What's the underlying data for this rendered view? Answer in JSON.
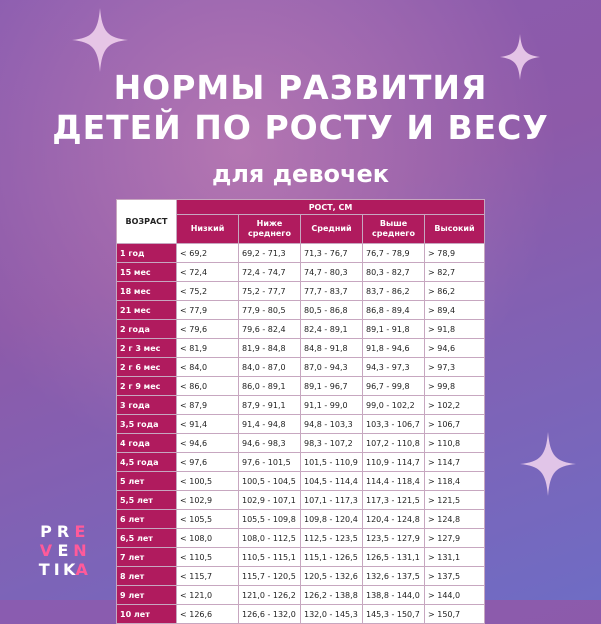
{
  "header": {
    "title_line1": "НОРМЫ РАЗВИТИЯ",
    "title_line2": "ДЕТЕЙ ПО РОСТУ И ВЕСУ",
    "subtitle": "для девочек"
  },
  "table": {
    "age_header": "ВОЗРАСТ",
    "group_header": "РОСТ, СМ",
    "columns": [
      "Низкий",
      "Ниже среднего",
      "Средний",
      "Выше среднего",
      "Высокий"
    ],
    "rows": [
      {
        "age": "1 год",
        "values": [
          "< 69,2",
          "69,2 - 71,3",
          "71,3 - 76,7",
          "76,7 - 78,9",
          "> 78,9"
        ]
      },
      {
        "age": "15 мес",
        "values": [
          "< 72,4",
          "72,4 - 74,7",
          "74,7 - 80,3",
          "80,3 - 82,7",
          "> 82,7"
        ]
      },
      {
        "age": "18 мес",
        "values": [
          "< 75,2",
          "75,2 - 77,7",
          "77,7 - 83,7",
          "83,7 - 86,2",
          "> 86,2"
        ]
      },
      {
        "age": "21 мес",
        "values": [
          "< 77,9",
          "77,9 - 80,5",
          "80,5 - 86,8",
          "86,8 - 89,4",
          "> 89,4"
        ]
      },
      {
        "age": "2 года",
        "values": [
          "< 79,6",
          "79,6 - 82,4",
          "82,4 - 89,1",
          "89,1 - 91,8",
          "> 91,8"
        ]
      },
      {
        "age": "2 г 3 мес",
        "values": [
          "< 81,9",
          "81,9 - 84,8",
          "84,8 - 91,8",
          "91,8 - 94,6",
          "> 94,6"
        ]
      },
      {
        "age": "2 г 6 мес",
        "values": [
          "< 84,0",
          "84,0 - 87,0",
          "87,0 - 94,3",
          "94,3 - 97,3",
          "> 97,3"
        ]
      },
      {
        "age": "2 г 9 мес",
        "values": [
          "< 86,0",
          "86,0 - 89,1",
          "89,1 - 96,7",
          "96,7 - 99,8",
          "> 99,8"
        ]
      },
      {
        "age": "3 года",
        "values": [
          "< 87,9",
          "87,9 - 91,1",
          "91,1 - 99,0",
          "99,0 - 102,2",
          "> 102,2"
        ]
      },
      {
        "age": "3,5 года",
        "values": [
          "< 91,4",
          "91,4 - 94,8",
          "94,8 - 103,3",
          "103,3 - 106,7",
          "> 106,7"
        ]
      },
      {
        "age": "4 года",
        "values": [
          "< 94,6",
          "94,6 - 98,3",
          "98,3 - 107,2",
          "107,2 - 110,8",
          "> 110,8"
        ]
      },
      {
        "age": "4,5 года",
        "values": [
          "< 97,6",
          "97,6 - 101,5",
          "101,5 - 110,9",
          "110,9 - 114,7",
          "> 114,7"
        ]
      },
      {
        "age": "5 лет",
        "values": [
          "< 100,5",
          "100,5 - 104,5",
          "104,5 - 114,4",
          "114,4 - 118,4",
          "> 118,4"
        ]
      },
      {
        "age": "5,5 лет",
        "values": [
          "< 102,9",
          "102,9 - 107,1",
          "107,1 - 117,3",
          "117,3 - 121,5",
          "> 121,5"
        ]
      },
      {
        "age": "6 лет",
        "values": [
          "< 105,5",
          "105,5 - 109,8",
          "109,8 - 120,4",
          "120,4 - 124,8",
          "> 124,8"
        ]
      },
      {
        "age": "6,5 лет",
        "values": [
          "< 108,0",
          "108,0 - 112,5",
          "112,5 - 123,5",
          "123,5 - 127,9",
          "> 127,9"
        ]
      },
      {
        "age": "7 лет",
        "values": [
          "< 110,5",
          "110,5 - 115,1",
          "115,1 - 126,5",
          "126,5 - 131,1",
          "> 131,1"
        ]
      },
      {
        "age": "8 лет",
        "values": [
          "< 115,7",
          "115,7 - 120,5",
          "120,5 - 132,6",
          "132,6 - 137,5",
          "> 137,5"
        ]
      },
      {
        "age": "9 лет",
        "values": [
          "< 121,0",
          "121,0 - 126,2",
          "126,2 - 138,8",
          "138,8 - 144,0",
          "> 144,0"
        ]
      },
      {
        "age": "10 лет",
        "values": [
          "< 126,6",
          "126,6 - 132,0",
          "132,0 - 145,3",
          "145,3 - 150,7",
          "> 150,7"
        ]
      }
    ]
  },
  "logo": {
    "row1": [
      "PR",
      "E",
      "VE"
    ],
    "row2": [
      "",
      "VE",
      "N"
    ],
    "letters": [
      [
        "P",
        "R",
        "E"
      ],
      [
        "",
        "V",
        "E"
      ],
      [
        "N",
        "T",
        "I"
      ],
      [
        "T",
        "I",
        "KA"
      ]
    ]
  },
  "brand": {
    "rows": [
      [
        "P",
        "R",
        "E"
      ],
      [
        "V",
        "E",
        "N"
      ],
      [
        "T",
        "I",
        "K",
        "A"
      ]
    ],
    "pink_letters": [
      "E",
      "V",
      "N",
      "A"
    ]
  },
  "colors": {
    "accent": "#b01b5e",
    "background_top": "#8a5cb0",
    "background_bottom": "#6f6cc4",
    "logo_pink": "#ff5a9a"
  },
  "icons": [
    "sparkle-icon"
  ]
}
